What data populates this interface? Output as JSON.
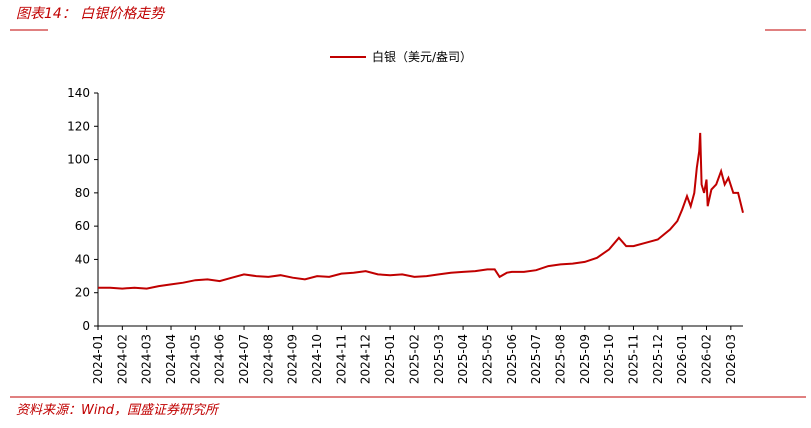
{
  "header": {
    "title": "图表14：  白银价格走势"
  },
  "chart_data": {
    "type": "line",
    "series": [
      {
        "name": "白银（美元/盎司）",
        "color": "#c00000",
        "x": [
          0,
          0.5,
          1,
          1.5,
          2,
          2.5,
          3,
          3.5,
          4,
          4.5,
          5,
          5.5,
          6,
          6.5,
          7,
          7.5,
          8,
          8.5,
          9,
          9.5,
          10,
          10.5,
          11,
          11.5,
          12,
          12.5,
          13,
          13.5,
          14,
          14.5,
          15,
          15.5,
          16,
          16.3,
          16.5,
          16.8,
          17,
          17.5,
          18,
          18.5,
          19,
          19.5,
          20,
          20.5,
          21,
          21.4,
          21.7,
          22,
          22.5,
          23,
          23.5,
          23.8,
          24,
          24.2,
          24.35,
          24.5,
          24.6,
          24.7,
          24.74,
          24.8,
          24.9,
          25,
          25.05,
          25.2,
          25.4,
          25.6,
          25.75,
          25.9,
          26.1,
          26.3,
          26.5
        ],
        "values": [
          23,
          23,
          22.5,
          23,
          22.5,
          24,
          25,
          26,
          27.5,
          28,
          27,
          29,
          31,
          30,
          29.5,
          30.5,
          29,
          28,
          30,
          29.5,
          31.5,
          32,
          33,
          31,
          30.5,
          31,
          29.5,
          30,
          31,
          32,
          32.5,
          33,
          34,
          34,
          29.5,
          32,
          32.5,
          32.5,
          33.5,
          36,
          37,
          37.5,
          38.5,
          41,
          46,
          53,
          48,
          48,
          50,
          52,
          58,
          63,
          70,
          78,
          72,
          80,
          95,
          105,
          116,
          85,
          80,
          88,
          72,
          82,
          85,
          93,
          85,
          89,
          80,
          80,
          68
        ]
      }
    ],
    "xlim": [
      0,
      26.5
    ],
    "xticks": [
      {
        "value": 0,
        "label": "2024-01"
      },
      {
        "value": 1,
        "label": "2024-02"
      },
      {
        "value": 2,
        "label": "2024-03"
      },
      {
        "value": 3,
        "label": "2024-04"
      },
      {
        "value": 4,
        "label": "2024-05"
      },
      {
        "value": 5,
        "label": "2024-06"
      },
      {
        "value": 6,
        "label": "2024-07"
      },
      {
        "value": 7,
        "label": "2024-08"
      },
      {
        "value": 8,
        "label": "2024-09"
      },
      {
        "value": 9,
        "label": "2024-10"
      },
      {
        "value": 10,
        "label": "2024-11"
      },
      {
        "value": 11,
        "label": "2024-12"
      },
      {
        "value": 12,
        "label": "2025-01"
      },
      {
        "value": 13,
        "label": "2025-02"
      },
      {
        "value": 14,
        "label": "2025-03"
      },
      {
        "value": 15,
        "label": "2025-04"
      },
      {
        "value": 16,
        "label": "2025-05"
      },
      {
        "value": 17,
        "label": "2025-06"
      },
      {
        "value": 18,
        "label": "2025-07"
      },
      {
        "value": 19,
        "label": "2025-08"
      },
      {
        "value": 20,
        "label": "2025-09"
      },
      {
        "value": 21,
        "label": "2025-10"
      },
      {
        "value": 22,
        "label": "2025-11"
      },
      {
        "value": 23,
        "label": "2025-12"
      },
      {
        "value": 24,
        "label": "2026-01"
      },
      {
        "value": 25,
        "label": "2026-02"
      },
      {
        "value": 26,
        "label": "2026-03"
      }
    ],
    "ylim": [
      0,
      140
    ],
    "yticks": [
      0,
      20,
      40,
      60,
      80,
      100,
      120,
      140
    ],
    "grid": false,
    "legend": "top"
  },
  "footer": {
    "source": "资料来源：Wind，国盛证券研究所"
  }
}
